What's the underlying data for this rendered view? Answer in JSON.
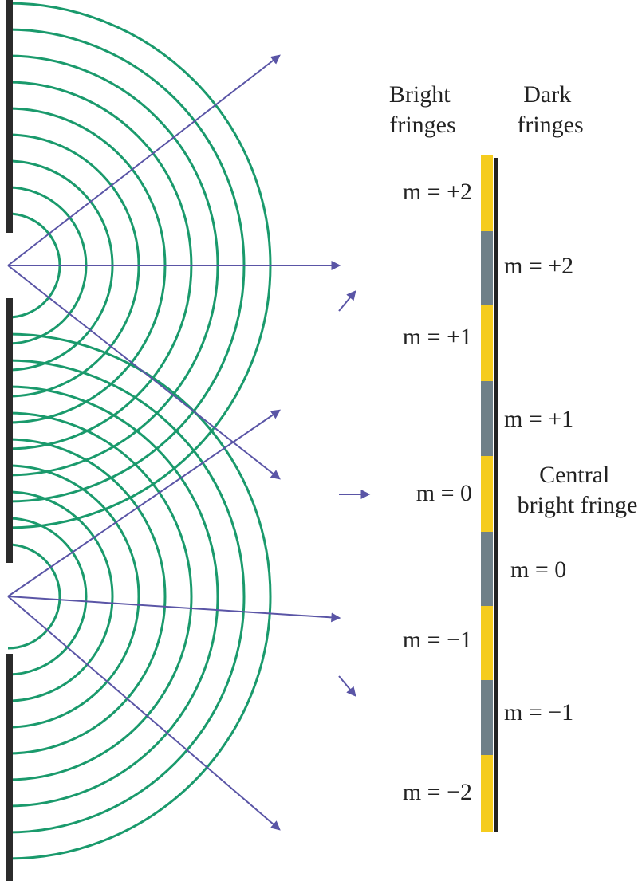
{
  "headers": {
    "bright": [
      "Bright",
      "fringes"
    ],
    "dark": [
      "Dark",
      "fringes"
    ]
  },
  "bright_labels": [
    "m = +2",
    "m = +1",
    "m = 0",
    "m = −1",
    "m = −2"
  ],
  "dark_labels": [
    "m = +2",
    "m = +1",
    "m = 0",
    "m = −1"
  ],
  "central": [
    "Central",
    "bright fringe"
  ]
}
